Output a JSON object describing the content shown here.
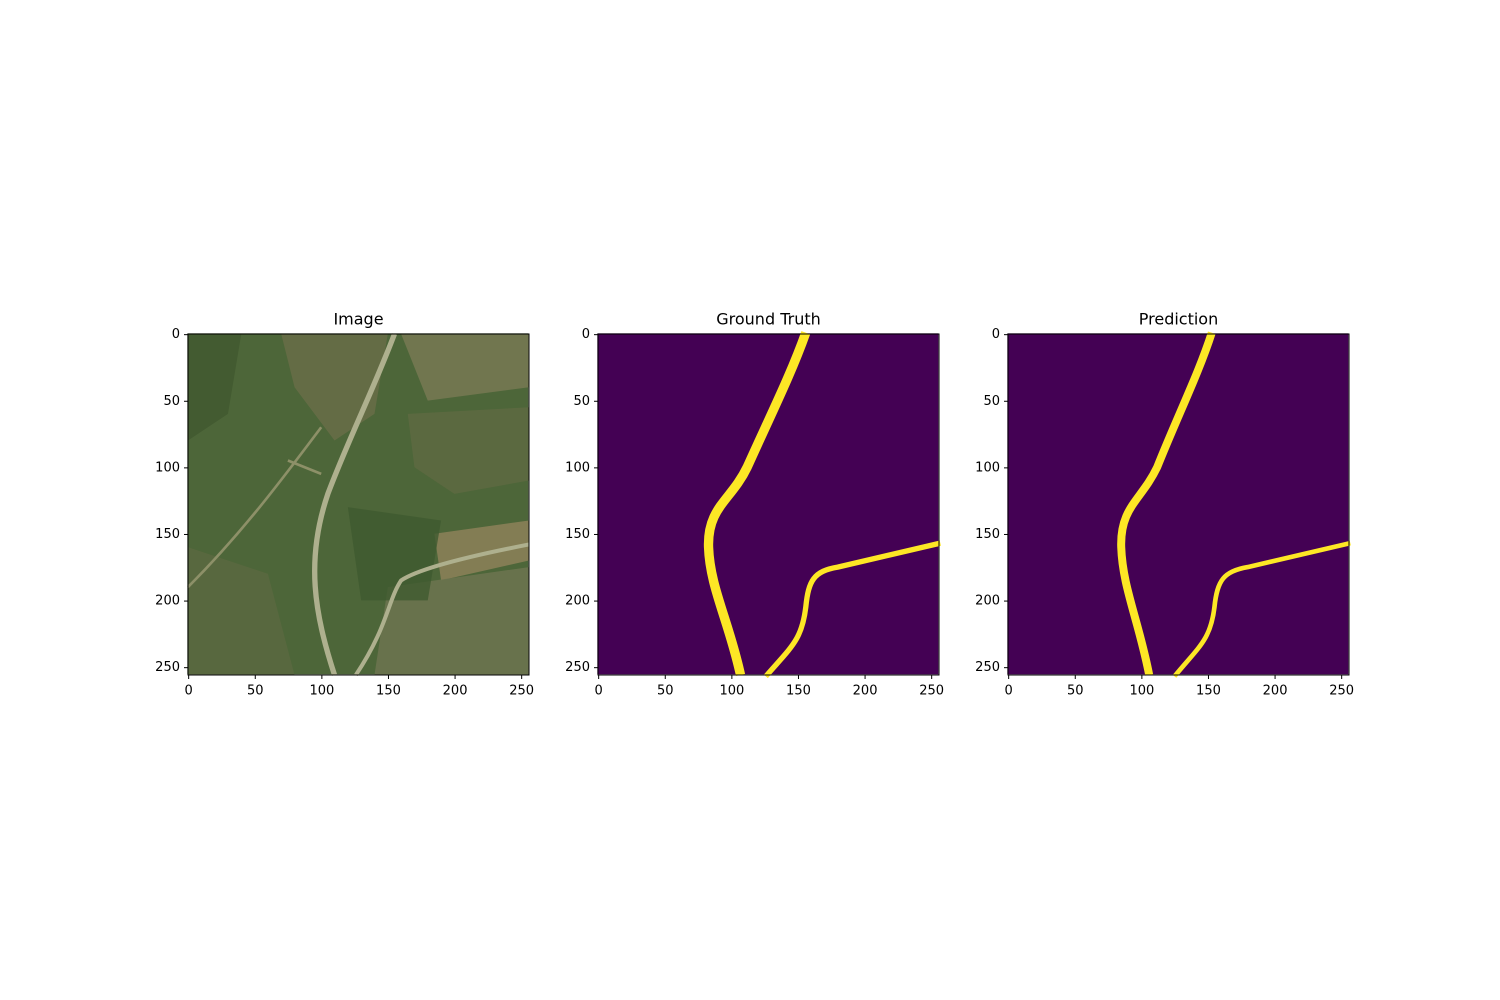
{
  "chart_data": [
    {
      "type": "image",
      "title": "Image",
      "xlim": [
        -0.5,
        255.5
      ],
      "ylim": [
        255.5,
        -0.5
      ],
      "xticks": [
        0,
        50,
        100,
        150,
        200,
        250
      ],
      "yticks": [
        0,
        50,
        100,
        150,
        200,
        250
      ]
    },
    {
      "type": "image",
      "title": "Ground Truth",
      "xlim": [
        -0.5,
        255.5
      ],
      "ylim": [
        255.5,
        -0.5
      ],
      "xticks": [
        0,
        50,
        100,
        150,
        200,
        250
      ],
      "yticks": [
        0,
        50,
        100,
        150,
        200,
        250
      ]
    },
    {
      "type": "image",
      "title": "Prediction",
      "xlim": [
        -0.5,
        255.5
      ],
      "ylim": [
        255.5,
        -0.5
      ],
      "xticks": [
        0,
        50,
        100,
        150,
        200,
        250
      ],
      "yticks": [
        0,
        50,
        100,
        150,
        200,
        250
      ]
    }
  ]
}
